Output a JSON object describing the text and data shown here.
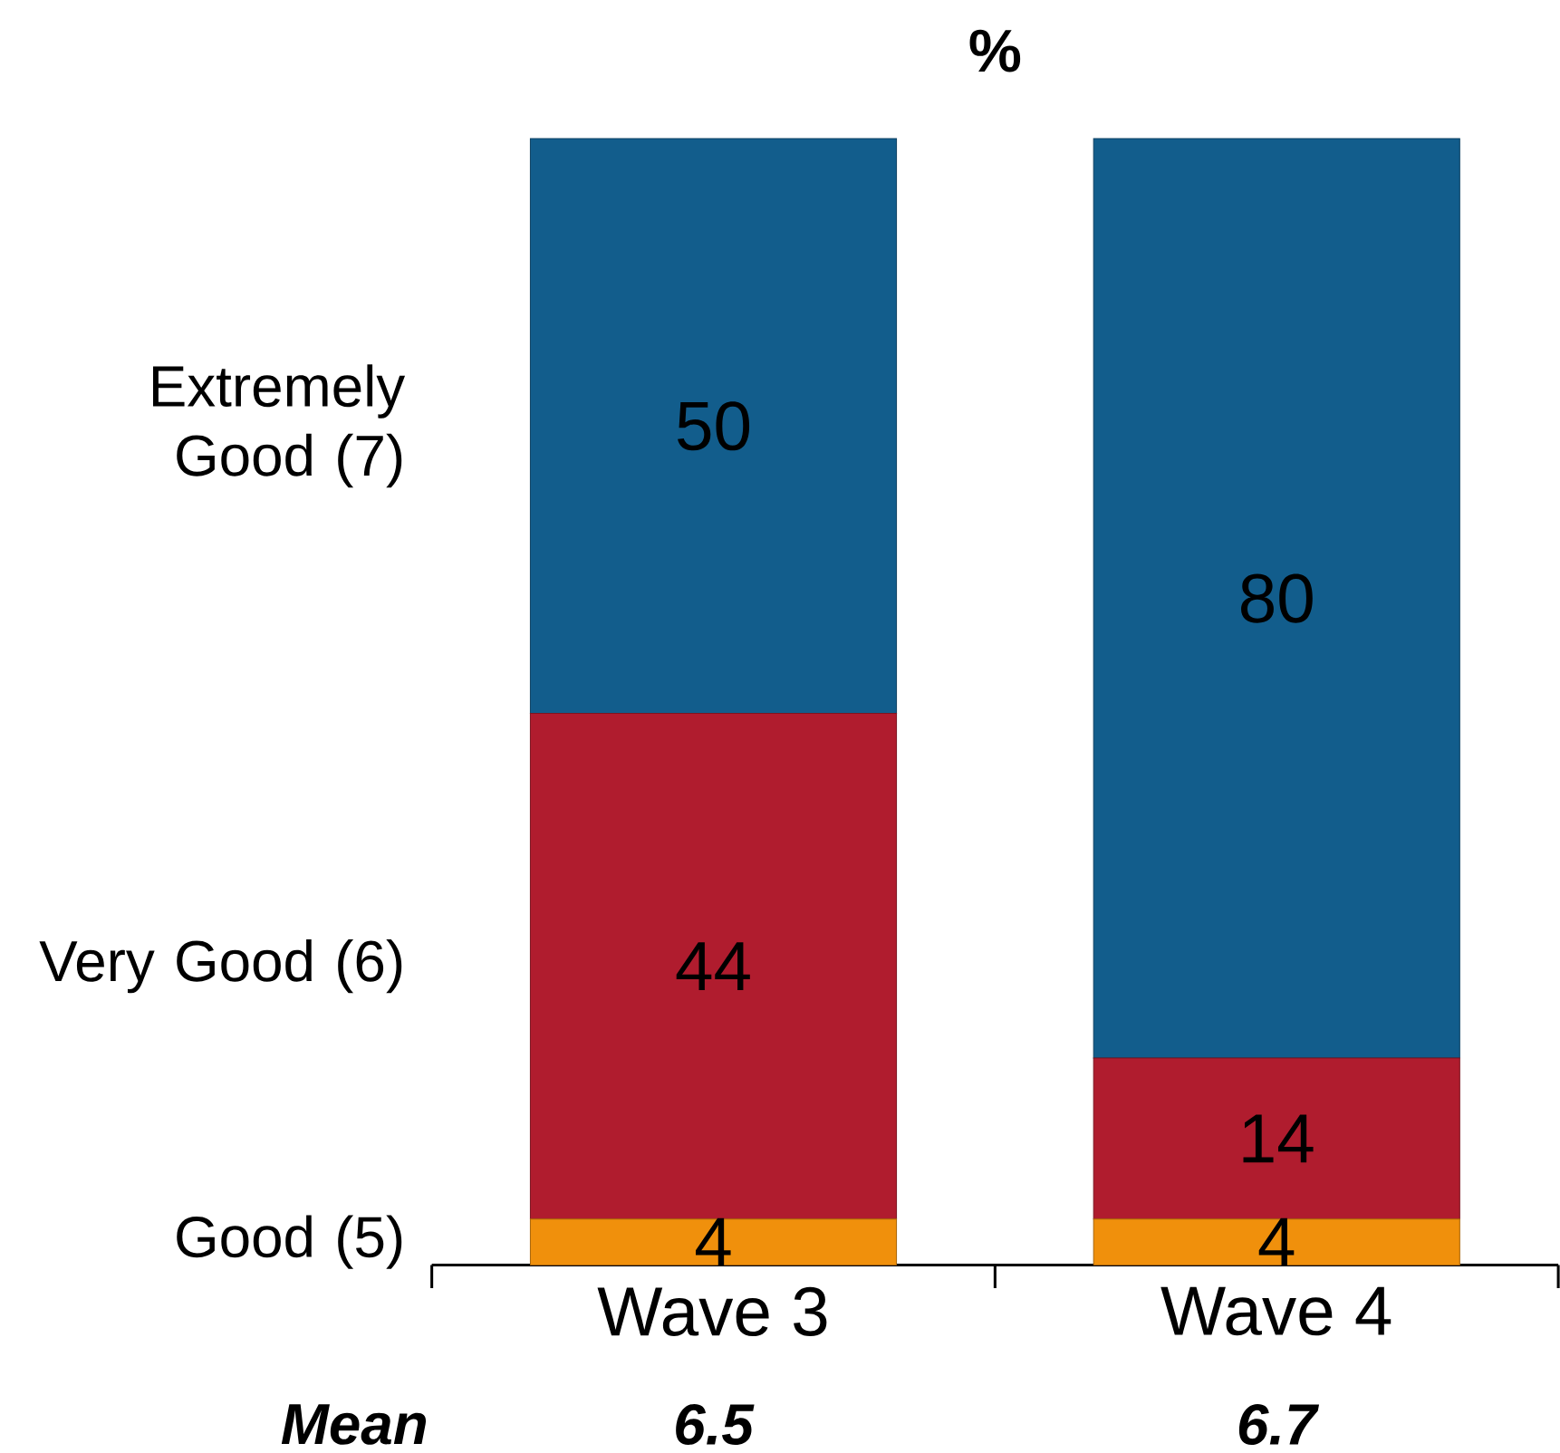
{
  "chart_data": {
    "type": "bar",
    "stacked": true,
    "title": "%",
    "data_labels": true,
    "categories": [
      "Wave 3",
      "Wave 4"
    ],
    "series": [
      {
        "name": "Good (5)",
        "color": "#f0900c",
        "values": [
          4,
          4
        ]
      },
      {
        "name": "Very Good (6)",
        "color": "#b01c2e",
        "values": [
          44,
          14
        ]
      },
      {
        "name": "Extremely Good (7)",
        "color": "#125d8c",
        "values": [
          50,
          80
        ]
      }
    ],
    "annotations": [
      "Mean",
      "6.5",
      "6.7"
    ]
  }
}
